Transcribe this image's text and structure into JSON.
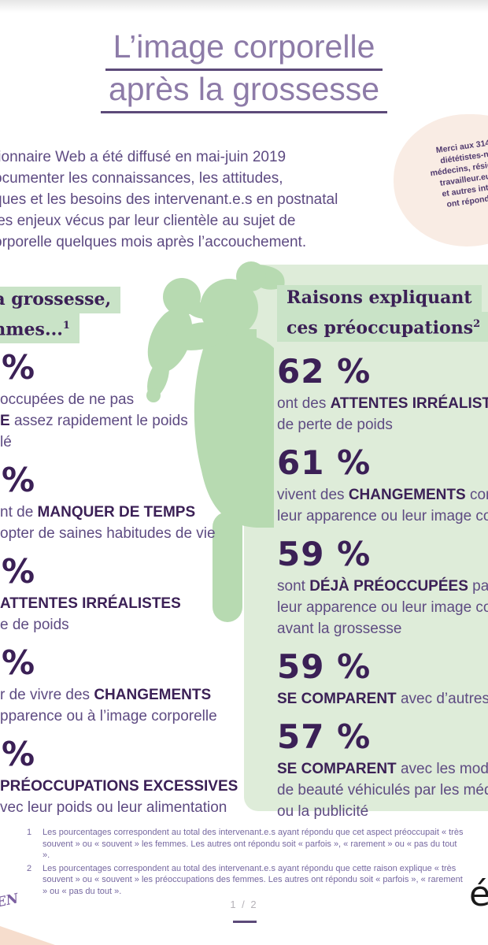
{
  "title": {
    "line1": "L’image corporelle",
    "line2": "après la grossesse"
  },
  "intro_lines": [
    "tionnaire Web a été diffusé en mai-juin 2019",
    "ocumenter les connaissances, les attitudes,",
    "ques et les besoins des intervenant.e.s en postnatal",
    "les enjeux vécus par leur clientèle au sujet de",
    "orporelle quelques mois après l’accouchement."
  ],
  "thanks_bubble": {
    "lines": [
      "Merci aux 314",
      "diététistes-n",
      "médecins, résiden",
      "travailleur.eus",
      "et autres inter",
      "ont répondu"
    ]
  },
  "left_column": {
    "heading_line1": "la grossesse,",
    "heading_line2": "mmes...",
    "heading_footnote_ref": "1",
    "stats": [
      {
        "value": "%",
        "lines": [
          [
            {
              "t": "occupées de ne pas"
            }
          ],
          [
            {
              "t": "E",
              "b": true
            },
            {
              "t": " assez rapidement le poids"
            }
          ],
          [
            {
              "t": "lé"
            }
          ]
        ]
      },
      {
        "value": "%",
        "lines": [
          [
            {
              "t": "nt de "
            },
            {
              "t": "MANQUER DE TEMPS",
              "b": true
            }
          ],
          [
            {
              "t": "opter de saines habitudes de vie"
            }
          ]
        ]
      },
      {
        "value": "%",
        "lines": [
          [
            {
              "t": "ATTENTES IRRÉALISTES",
              "b": true
            }
          ],
          [
            {
              "t": "e de poids"
            }
          ]
        ]
      },
      {
        "value": "%",
        "lines": [
          [
            {
              "t": "r de vivre des "
            },
            {
              "t": "CHANGEMENTS",
              "b": true
            }
          ],
          [
            {
              "t": "pparence ou à l’image corporelle"
            }
          ]
        ]
      },
      {
        "value": "%",
        "lines": [
          [
            {
              "t": "PRÉOCCUPATIONS EXCESSIVES",
              "b": true
            }
          ],
          [
            {
              "t": "vec leur poids ou leur alimentation"
            }
          ]
        ]
      }
    ]
  },
  "right_column": {
    "heading_line1": "Raisons expliquant",
    "heading_line2": "ces préoccupations",
    "heading_footnote_ref": "2",
    "stats": [
      {
        "value": "62 %",
        "lines": [
          [
            {
              "t": "ont des "
            },
            {
              "t": "ATTENTES IRRÉALISTES",
              "b": true
            }
          ],
          [
            {
              "t": "de perte de poids"
            }
          ]
        ]
      },
      {
        "value": "61 %",
        "lines": [
          [
            {
              "t": "vivent des "
            },
            {
              "t": "CHANGEMENTS",
              "b": true
            },
            {
              "t": " con"
            }
          ],
          [
            {
              "t": "leur apparence ou leur image co"
            }
          ]
        ]
      },
      {
        "value": "59 %",
        "lines": [
          [
            {
              "t": "sont "
            },
            {
              "t": "DÉJÀ PRÉOCCUPÉES",
              "b": true
            },
            {
              "t": " par le"
            }
          ],
          [
            {
              "t": "leur apparence ou leur image co"
            }
          ],
          [
            {
              "t": "avant la grossesse"
            }
          ]
        ]
      },
      {
        "value": "59 %",
        "lines": [
          [
            {
              "t": "SE COMPARENT",
              "b": true
            },
            {
              "t": " avec d’autres f"
            }
          ]
        ]
      },
      {
        "value": "57 %",
        "lines": [
          [
            {
              "t": "SE COMPARENT",
              "b": true
            },
            {
              "t": " avec les modèl"
            }
          ],
          [
            {
              "t": "de beauté véhiculés par les méd"
            }
          ],
          [
            {
              "t": "ou la publicité"
            }
          ]
        ]
      }
    ]
  },
  "footnotes": [
    {
      "num": "1",
      "text": "Les pourcentages correspondent au total des intervenant.e.s ayant répondu que cet aspect préoccupait « très souvent » ou « souvent » les femmes. Les autres ont répondu soit « parfois », « rarement » ou « pas du tout »."
    },
    {
      "num": "2",
      "text": "Les pourcentages correspondent au total des intervenant.e.s ayant répondu que cette raison explique « très souvent » ou « souvent » les préoccupations des femmes. Les autres ont répondu soit « parfois », « rarement » ou « pas du tout »."
    }
  ],
  "footer": {
    "page_indicator": "1 / 2",
    "left_logo_fragment": "EN",
    "right_logo_fragment": "é"
  },
  "colors": {
    "title": "#8d7ba8",
    "text": "#5e4b82",
    "dark": "#3b2056",
    "highlight": "#c9e3c7",
    "panel": "#deecd9",
    "figure": "#b7dab1",
    "peach": "#f9ece4",
    "fn": "#7668a0",
    "pagenum": "#b5b2b8",
    "underline": "#5c4a79",
    "corner": "#f6ddcd",
    "logo": "#1a1a1a"
  }
}
